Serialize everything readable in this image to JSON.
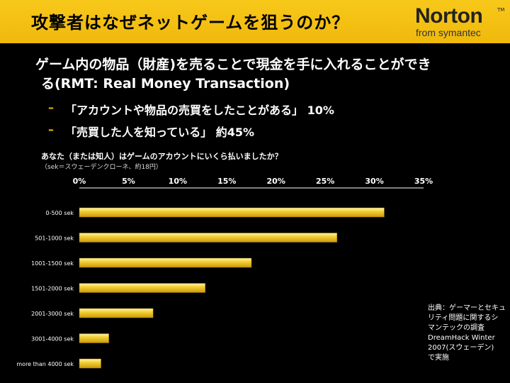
{
  "title": "攻撃者はなぜネットゲームを狙うのか？",
  "logo": {
    "brand": "Norton",
    "tm": "TM",
    "sub": "from symantec"
  },
  "main_bullet": {
    "line1": "ゲーム内の物品（財産)を売ることで現金を手に入れることができ",
    "line2": "る(RMT: Real Money Transaction)"
  },
  "sub_bullets": [
    {
      "text": "「アカウントや物品の売買をしたことがある」 10%"
    },
    {
      "text": "「売買した人を知っている」 約45%"
    }
  ],
  "chart_data": {
    "type": "bar",
    "orientation": "horizontal",
    "title": "あなた（または知人）はゲームのアカウントにいくら払いましたか？",
    "note": "（sek＝スウェーデンクローネ、約18円）",
    "categories": [
      "0-500 sek",
      "501-1000 sek",
      "1001-1500 sek",
      "1501-2000 sek",
      "2001-3000 sek",
      "3001-4000 sek",
      "more than 4000 sek"
    ],
    "values": [
      31,
      26.2,
      17.5,
      12.8,
      7.5,
      3,
      2.2
    ],
    "xlim": [
      0,
      35
    ],
    "xticks": [
      "0%",
      "5%",
      "10%",
      "15%",
      "20%",
      "25%",
      "30%",
      "35%"
    ],
    "xtick_values": [
      0,
      5,
      10,
      15,
      20,
      25,
      30,
      35
    ],
    "bar_color": "#f2c21a",
    "grid": false
  },
  "source": {
    "lines": [
      "出典：ゲーマーとセキュ",
      "リティ問題に関するシ",
      "マンテックの調査",
      "DreamHack Winter",
      "2007(スウェーデン)",
      "で実施"
    ]
  }
}
